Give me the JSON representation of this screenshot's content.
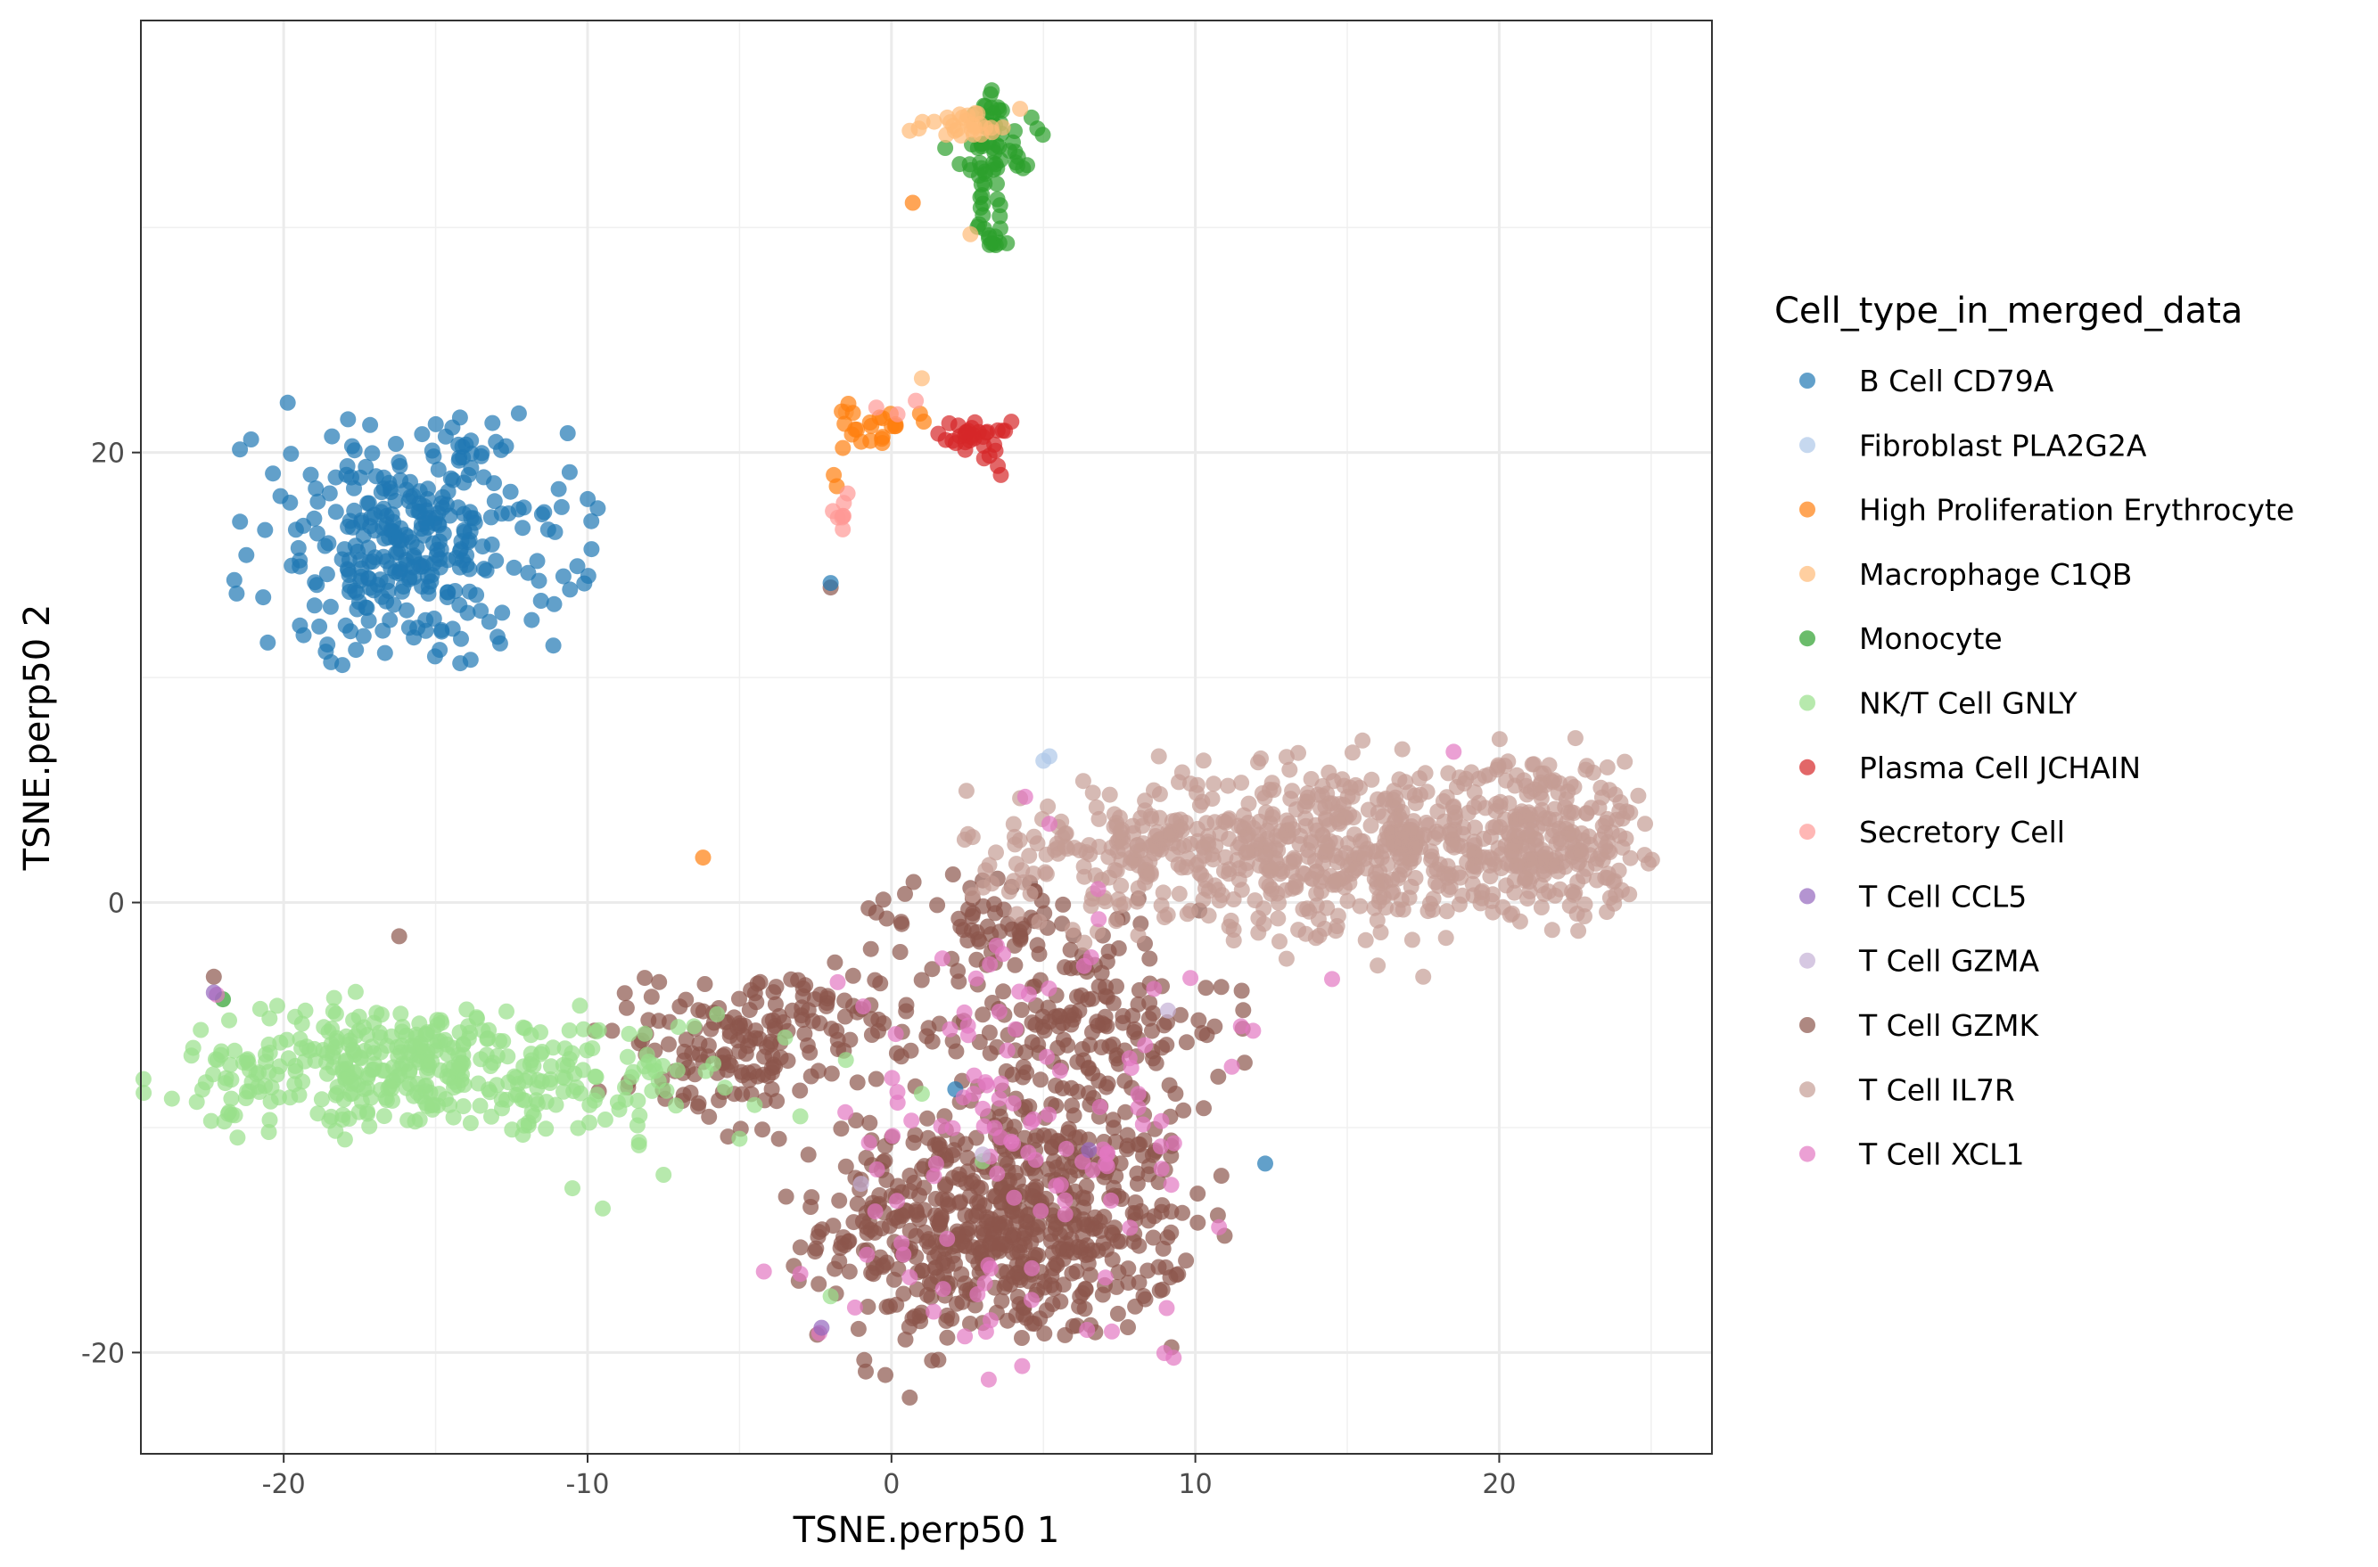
{
  "chart_data": {
    "type": "scatter",
    "title": "",
    "xlabel": "TSNE.perp50 1",
    "ylabel": "TSNE.perp50 2",
    "xlim": [
      -24.7,
      27.0
    ],
    "ylim": [
      -24.5,
      39.2
    ],
    "xticks": [
      -20,
      -10,
      0,
      10,
      20
    ],
    "yticks": [
      -20,
      0,
      20
    ],
    "x_tick_labels": [
      "-20",
      "-10",
      "0",
      "10",
      "20"
    ],
    "y_tick_labels": [
      "-20",
      "0",
      "20"
    ],
    "grid": true,
    "legend_title": "Cell_type_in_merged_data",
    "legend_position": "right",
    "point_alpha": 0.7,
    "series": [
      {
        "name": "B Cell CD79A",
        "color": "#1f77b4",
        "clusters": [
          {
            "cx": -15.8,
            "cy": 16.0,
            "sx": 2.6,
            "sy": 2.6,
            "n": 330
          }
        ],
        "points": [
          [
            -2.0,
            14.2
          ],
          [
            2.1,
            -8.3
          ],
          [
            12.3,
            -11.6
          ],
          [
            -11.6,
            14.3
          ]
        ]
      },
      {
        "name": "Fibroblast PLA2G2A",
        "color": "#aec7e8",
        "clusters": [],
        "points": [
          [
            5.2,
            6.5
          ],
          [
            5.0,
            6.3
          ]
        ]
      },
      {
        "name": "High Proliferation Erythrocyte",
        "color": "#ff7f0e",
        "clusters": [
          {
            "cx": -0.6,
            "cy": 21.3,
            "sx": 0.7,
            "sy": 0.4,
            "n": 22
          }
        ],
        "points": [
          [
            0.7,
            31.1
          ],
          [
            -6.2,
            2.0
          ],
          [
            -1.9,
            19.0
          ],
          [
            -1.6,
            20.2
          ],
          [
            -1.3,
            20.8
          ],
          [
            -1.8,
            18.5
          ]
        ]
      },
      {
        "name": "Macrophage C1QB",
        "color": "#ffbb78",
        "clusters": [
          {
            "cx": 2.7,
            "cy": 34.6,
            "sx": 0.8,
            "sy": 0.3,
            "n": 26
          }
        ],
        "points": [
          [
            0.6,
            34.3
          ],
          [
            0.9,
            34.4
          ],
          [
            2.6,
            29.7
          ],
          [
            1.0,
            23.3
          ],
          [
            -1.5,
            21.8
          ]
        ]
      },
      {
        "name": "Monocyte",
        "color": "#2ca02c",
        "clusters": [
          {
            "cx": 3.3,
            "cy": 33.5,
            "sx": 0.7,
            "sy": 1.2,
            "n": 55
          },
          {
            "cx": 3.3,
            "cy": 30.5,
            "sx": 0.35,
            "sy": 1.2,
            "n": 22
          }
        ],
        "points": [
          [
            4.8,
            34.4
          ],
          [
            3.8,
            29.3
          ],
          [
            -22.0,
            -4.3
          ],
          [
            3.3,
            36.1
          ]
        ]
      },
      {
        "name": "NK/T Cell GNLY",
        "color": "#98df8a",
        "clusters": [
          {
            "cx": -16.0,
            "cy": -7.3,
            "sx": 3.7,
            "sy": 1.4,
            "n": 360
          },
          {
            "cx": -9.0,
            "cy": -7.8,
            "sx": 1.5,
            "sy": 1.3,
            "n": 40
          }
        ],
        "points": [
          [
            -10.5,
            -12.7
          ],
          [
            -9.5,
            -13.6
          ],
          [
            -7.5,
            -12.1
          ],
          [
            -5.0,
            -10.5
          ],
          [
            -3.0,
            -9.5
          ],
          [
            -1.5,
            -7.0
          ],
          [
            1.0,
            -8.5
          ],
          [
            3.0,
            -11.5
          ],
          [
            -3.5,
            -6.0
          ],
          [
            -2.0,
            -17.5
          ],
          [
            -6.5,
            -5.5
          ],
          [
            -4.5,
            -9.0
          ]
        ]
      },
      {
        "name": "Plasma Cell JCHAIN",
        "color": "#d62728",
        "clusters": [
          {
            "cx": 2.7,
            "cy": 20.6,
            "sx": 0.6,
            "sy": 0.4,
            "n": 30
          }
        ],
        "points": [
          [
            3.5,
            19.4
          ],
          [
            3.6,
            19.0
          ],
          [
            1.9,
            21.3
          ],
          [
            2.2,
            21.2
          ]
        ]
      },
      {
        "name": "Secretory Cell",
        "color": "#ff9896",
        "clusters": [
          {
            "cx": -1.6,
            "cy": 17.4,
            "sx": 0.15,
            "sy": 0.5,
            "n": 8
          }
        ],
        "points": [
          [
            0.8,
            22.3
          ],
          [
            0.2,
            21.7
          ],
          [
            -0.5,
            22.0
          ]
        ]
      },
      {
        "name": "T Cell CCL5",
        "color": "#9467bd",
        "clusters": [],
        "points": [
          [
            -2.3,
            -18.9
          ],
          [
            -22.3,
            -4.0
          ],
          [
            6.5,
            -11.0
          ]
        ]
      },
      {
        "name": "T Cell GZMA",
        "color": "#c5b0d5",
        "clusters": [],
        "points": [
          [
            3.0,
            -11.2
          ],
          [
            9.1,
            -4.8
          ],
          [
            -1.0,
            -12.5
          ]
        ]
      },
      {
        "name": "T Cell GZMK",
        "color": "#8c564b",
        "clusters": [
          {
            "cx": 3.8,
            "cy": -14.3,
            "sx": 3.0,
            "sy": 2.6,
            "n": 620
          },
          {
            "cx": -3.5,
            "cy": -5.5,
            "sx": 2.2,
            "sy": 1.3,
            "n": 110
          },
          {
            "cx": 6.0,
            "cy": -5.5,
            "sx": 2.5,
            "sy": 2.5,
            "n": 200
          },
          {
            "cx": 3.0,
            "cy": -0.5,
            "sx": 2.0,
            "sy": 1.0,
            "n": 50
          },
          {
            "cx": -6.0,
            "cy": -7.5,
            "sx": 1.6,
            "sy": 1.6,
            "n": 70
          }
        ],
        "points": [
          [
            -2.0,
            14.0
          ],
          [
            -16.2,
            -1.5
          ],
          [
            -22.3,
            -3.3
          ],
          [
            0.6,
            -22.0
          ],
          [
            -0.2,
            -21.0
          ]
        ]
      },
      {
        "name": "T Cell IL7R",
        "color": "#c49c94",
        "clusters": [
          {
            "cx": 14.5,
            "cy": 2.5,
            "sx": 4.0,
            "sy": 1.8,
            "n": 560
          },
          {
            "cx": 21.5,
            "cy": 3.0,
            "sx": 1.6,
            "sy": 1.8,
            "n": 230
          },
          {
            "cx": 6.5,
            "cy": 2.0,
            "sx": 2.0,
            "sy": 1.6,
            "n": 90
          }
        ],
        "points": [
          [
            15.5,
            7.2
          ],
          [
            24.8,
            3.5
          ],
          [
            8.8,
            6.5
          ],
          [
            13.0,
            -2.5
          ],
          [
            16.0,
            -2.8
          ],
          [
            17.5,
            -3.3
          ]
        ]
      },
      {
        "name": "T Cell XCL1",
        "color": "#e377c2",
        "clusters": [
          {
            "cx": 4.0,
            "cy": -11.0,
            "sx": 3.2,
            "sy": 4.5,
            "n": 110
          }
        ],
        "points": [
          [
            18.5,
            6.7
          ],
          [
            14.5,
            -3.4
          ],
          [
            4.3,
            -20.6
          ],
          [
            3.2,
            -21.2
          ],
          [
            11.2,
            -7.3
          ],
          [
            11.9,
            -5.7
          ],
          [
            -1.2,
            -18.0
          ],
          [
            -22.2,
            -4.1
          ],
          [
            11.5,
            -5.5
          ],
          [
            5.2,
            3.5
          ],
          [
            4.4,
            4.7
          ],
          [
            2.7,
            -8.5
          ],
          [
            6.8,
            0.6
          ],
          [
            9.3,
            -10.7
          ],
          [
            -3.0,
            -16.5
          ],
          [
            -4.2,
            -16.4
          ]
        ]
      }
    ]
  }
}
